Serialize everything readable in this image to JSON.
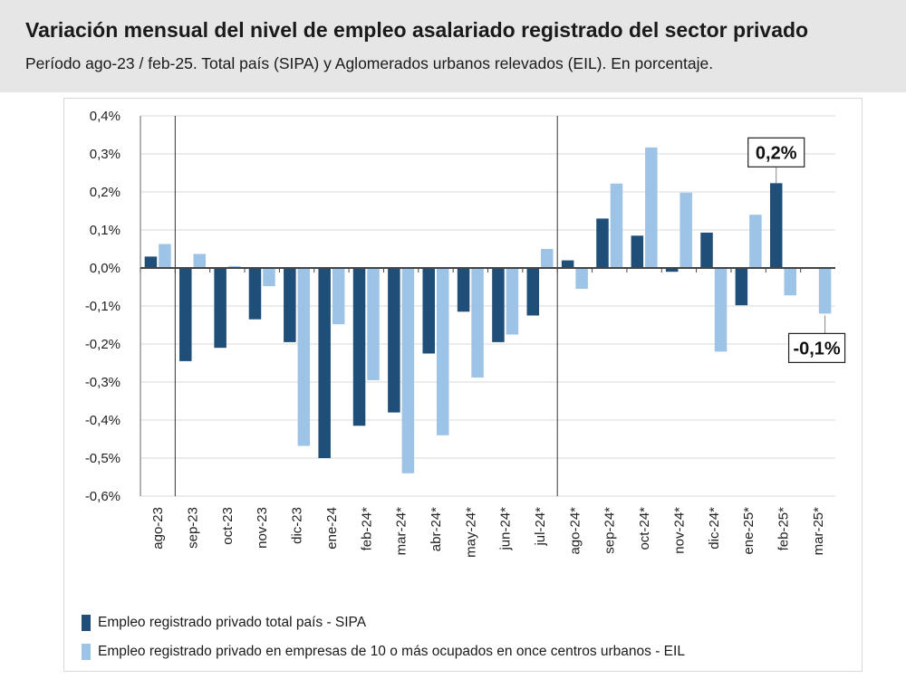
{
  "header": {
    "title": "Variación mensual del nivel de empleo asalariado registrado del sector privado",
    "subtitle": "Período ago-23 / feb-25. Total país (SIPA) y Aglomerados urbanos relevados (EIL). En porcentaje."
  },
  "colors": {
    "sipa": "#1f4e79",
    "eil": "#9dc3e6",
    "grid": "#d9d9d9"
  },
  "chart_data": {
    "type": "bar",
    "title": "Variación mensual del nivel de empleo asalariado registrado del sector privado",
    "xlabel": "",
    "ylabel": "",
    "ylim": [
      -0.6,
      0.4
    ],
    "yticks": [
      "0,4%",
      "0,3%",
      "0,2%",
      "0,1%",
      "0,0%",
      "-0,1%",
      "-0,2%",
      "-0,3%",
      "-0,4%",
      "-0,5%",
      "-0,6%"
    ],
    "ytick_values": [
      0.4,
      0.3,
      0.2,
      0.1,
      0.0,
      -0.1,
      -0.2,
      -0.3,
      -0.4,
      -0.5,
      -0.6
    ],
    "categories": [
      "ago-23",
      "sep-23",
      "oct-23",
      "nov-23",
      "dic-23",
      "ene-24",
      "feb-24*",
      "mar-24*",
      "abr-24*",
      "may-24*",
      "jun-24*",
      "jul-24*",
      "ago-24*",
      "sep-24*",
      "oct-24*",
      "nov-24*",
      "dic-24*",
      "ene-25*",
      "feb-25*",
      "mar-25*"
    ],
    "series": [
      {
        "name": "Empleo registrado privado total país - SIPA",
        "values": [
          0.03,
          -0.245,
          -0.21,
          -0.135,
          -0.195,
          -0.5,
          -0.415,
          -0.38,
          -0.225,
          -0.115,
          -0.195,
          -0.125,
          0.02,
          0.13,
          0.085,
          -0.01,
          0.093,
          -0.098,
          0.223,
          null
        ]
      },
      {
        "name": "Empleo registrado privado en empresas de 10 o más ocupados en once centros urbanos  - EIL",
        "values": [
          0.063,
          0.037,
          0.005,
          -0.048,
          -0.468,
          -0.148,
          -0.295,
          -0.54,
          -0.44,
          -0.288,
          -0.175,
          0.05,
          -0.055,
          0.222,
          0.317,
          0.198,
          -0.22,
          0.14,
          -0.072,
          -0.12
        ]
      }
    ],
    "separator_after": [
      "ago-23",
      "jul-24*"
    ],
    "annotations": [
      {
        "text": "0,2%",
        "series": 0,
        "category": "feb-25*"
      },
      {
        "text": "-0,1%",
        "series": 1,
        "category": "mar-25*"
      }
    ],
    "legend": "bottom"
  }
}
